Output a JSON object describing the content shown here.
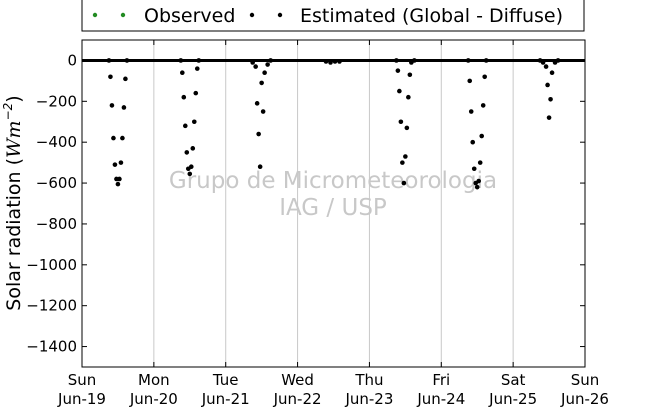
{
  "chart_data": {
    "type": "scatter",
    "title": "",
    "xlabel": "",
    "ylabel": "Solar radiation (Wm⁻²)",
    "ylabel_prefix": "Solar radiation (",
    "ylabel_unit_base": "Wm",
    "ylabel_unit_exp": "−2",
    "ylabel_suffix": ")",
    "ylim": [
      -1500,
      100
    ],
    "xlim_days": [
      0,
      7
    ],
    "x_ticks": [
      {
        "day": "Sun",
        "date": "Jun-19"
      },
      {
        "day": "Mon",
        "date": "Jun-20"
      },
      {
        "day": "Tue",
        "date": "Jun-21"
      },
      {
        "day": "Wed",
        "date": "Jun-22"
      },
      {
        "day": "Thu",
        "date": "Jun-23"
      },
      {
        "day": "Fri",
        "date": "Jun-24"
      },
      {
        "day": "Sat",
        "date": "Jun-25"
      },
      {
        "day": "Sun",
        "date": "Jun-26"
      }
    ],
    "y_ticks": [
      0,
      -200,
      -400,
      -600,
      -800,
      -1000,
      -1200,
      -1400
    ],
    "y_tick_labels": [
      "0",
      "−200",
      "−400",
      "−600",
      "−800",
      "−1000",
      "−1200",
      "−1400"
    ],
    "grid": "vertical",
    "legend_position": "top",
    "series": [
      {
        "name": "Observed",
        "color": "#228b22",
        "values": []
      },
      {
        "name": "Estimated (Global - Diffuse)",
        "color": "#000000",
        "values": [
          [
            "Jun-19 09:00",
            0
          ],
          [
            "Jun-19 09:30",
            -80
          ],
          [
            "Jun-19 10:00",
            -220
          ],
          [
            "Jun-19 10:30",
            -380
          ],
          [
            "Jun-19 11:00",
            -510
          ],
          [
            "Jun-19 11:30",
            -580
          ],
          [
            "Jun-19 12:00",
            -605
          ],
          [
            "Jun-19 12:30",
            -580
          ],
          [
            "Jun-19 13:00",
            -500
          ],
          [
            "Jun-19 13:30",
            -380
          ],
          [
            "Jun-19 14:00",
            -230
          ],
          [
            "Jun-19 14:30",
            -90
          ],
          [
            "Jun-19 15:00",
            0
          ],
          [
            "Jun-20 09:00",
            0
          ],
          [
            "Jun-20 09:30",
            -60
          ],
          [
            "Jun-20 10:00",
            -180
          ],
          [
            "Jun-20 10:30",
            -320
          ],
          [
            "Jun-20 11:00",
            -450
          ],
          [
            "Jun-20 11:30",
            -530
          ],
          [
            "Jun-20 12:00",
            -555
          ],
          [
            "Jun-20 12:30",
            -520
          ],
          [
            "Jun-20 13:00",
            -430
          ],
          [
            "Jun-20 13:30",
            -300
          ],
          [
            "Jun-20 14:00",
            -160
          ],
          [
            "Jun-20 14:30",
            -40
          ],
          [
            "Jun-20 15:00",
            0
          ],
          [
            "Jun-21 09:00",
            -10
          ],
          [
            "Jun-21 10:00",
            -30
          ],
          [
            "Jun-21 10:30",
            -210
          ],
          [
            "Jun-21 11:00",
            -360
          ],
          [
            "Jun-21 11:30",
            -520
          ],
          [
            "Jun-21 12:00",
            -110
          ],
          [
            "Jun-21 12:30",
            -250
          ],
          [
            "Jun-21 13:00",
            -60
          ],
          [
            "Jun-21 14:00",
            -20
          ],
          [
            "Jun-21 15:00",
            0
          ],
          [
            "Jun-22 09:30",
            -5
          ],
          [
            "Jun-22 11:00",
            -10
          ],
          [
            "Jun-22 12:30",
            -5
          ],
          [
            "Jun-22 14:00",
            -5
          ],
          [
            "Jun-23 09:00",
            0
          ],
          [
            "Jun-23 09:30",
            -50
          ],
          [
            "Jun-23 10:00",
            -150
          ],
          [
            "Jun-23 10:30",
            -300
          ],
          [
            "Jun-23 11:00",
            -500
          ],
          [
            "Jun-23 11:30",
            -600
          ],
          [
            "Jun-23 12:00",
            -470
          ],
          [
            "Jun-23 12:30",
            -330
          ],
          [
            "Jun-23 13:00",
            -180
          ],
          [
            "Jun-23 13:30",
            -70
          ],
          [
            "Jun-23 14:00",
            -10
          ],
          [
            "Jun-23 15:00",
            0
          ],
          [
            "Jun-24 09:00",
            0
          ],
          [
            "Jun-24 09:30",
            -100
          ],
          [
            "Jun-24 10:00",
            -250
          ],
          [
            "Jun-24 10:30",
            -400
          ],
          [
            "Jun-24 11:00",
            -530
          ],
          [
            "Jun-24 11:30",
            -600
          ],
          [
            "Jun-24 12:00",
            -620
          ],
          [
            "Jun-24 12:30",
            -590
          ],
          [
            "Jun-24 13:00",
            -500
          ],
          [
            "Jun-24 13:30",
            -370
          ],
          [
            "Jun-24 14:00",
            -220
          ],
          [
            "Jun-24 14:30",
            -80
          ],
          [
            "Jun-24 15:00",
            0
          ],
          [
            "Jun-25 09:00",
            0
          ],
          [
            "Jun-25 10:00",
            -10
          ],
          [
            "Jun-25 11:00",
            -30
          ],
          [
            "Jun-25 11:30",
            -120
          ],
          [
            "Jun-25 12:00",
            -280
          ],
          [
            "Jun-25 12:30",
            -190
          ],
          [
            "Jun-25 13:00",
            -60
          ],
          [
            "Jun-25 14:00",
            -10
          ],
          [
            "Jun-25 15:00",
            0
          ]
        ]
      }
    ]
  },
  "watermark": {
    "line1": "Grupo de Micrometeorologia",
    "line2": "IAG / USP"
  }
}
